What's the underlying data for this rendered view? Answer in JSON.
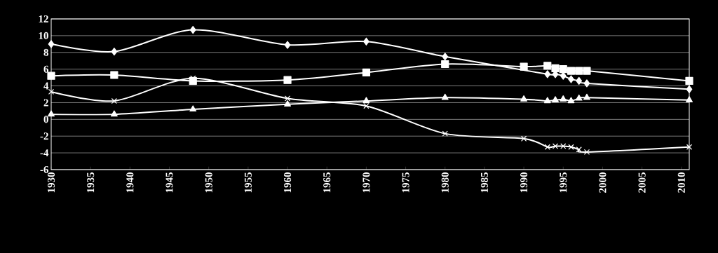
{
  "chart_data": {
    "type": "line",
    "x": [
      1930,
      1938,
      1948,
      1960,
      1970,
      1980,
      1990,
      1993,
      1994,
      1995,
      1996,
      1997,
      1998,
      2011
    ],
    "series": [
      {
        "color": "#ffffff",
        "marker": "diamond",
        "values": [
          9.0,
          8.1,
          10.7,
          8.9,
          9.3,
          7.5,
          null,
          5.4,
          5.4,
          5.2,
          4.8,
          4.6,
          4.3,
          3.6
        ]
      },
      {
        "color": "#ffffff",
        "marker": "square",
        "values": [
          5.2,
          5.3,
          4.6,
          4.7,
          5.6,
          6.6,
          6.3,
          6.4,
          6.1,
          6.0,
          5.8,
          5.8,
          5.8,
          4.6
        ]
      },
      {
        "color": "#ffffff",
        "marker": "triangle",
        "values": [
          0.6,
          0.6,
          1.2,
          1.8,
          2.2,
          2.6,
          2.4,
          2.2,
          2.3,
          2.4,
          2.2,
          2.5,
          2.6,
          2.3
        ]
      },
      {
        "color": "#ffffff",
        "marker": "cross",
        "values": [
          3.3,
          2.2,
          4.9,
          2.5,
          1.6,
          -1.7,
          -2.3,
          -3.3,
          -3.2,
          -3.2,
          -3.3,
          -3.6,
          -3.9,
          -3.3
        ]
      }
    ],
    "xlim": [
      1930,
      2011
    ],
    "xticks": [
      1930,
      1935,
      1940,
      1945,
      1950,
      1955,
      1960,
      1965,
      1970,
      1975,
      1980,
      1985,
      1990,
      1995,
      2000,
      2005,
      2010
    ],
    "ylim": [
      -6,
      12
    ],
    "yticks": [
      -6,
      -4,
      -2,
      0,
      2,
      4,
      6,
      8,
      10,
      12
    ],
    "grid": "y",
    "line_style": "solid"
  }
}
